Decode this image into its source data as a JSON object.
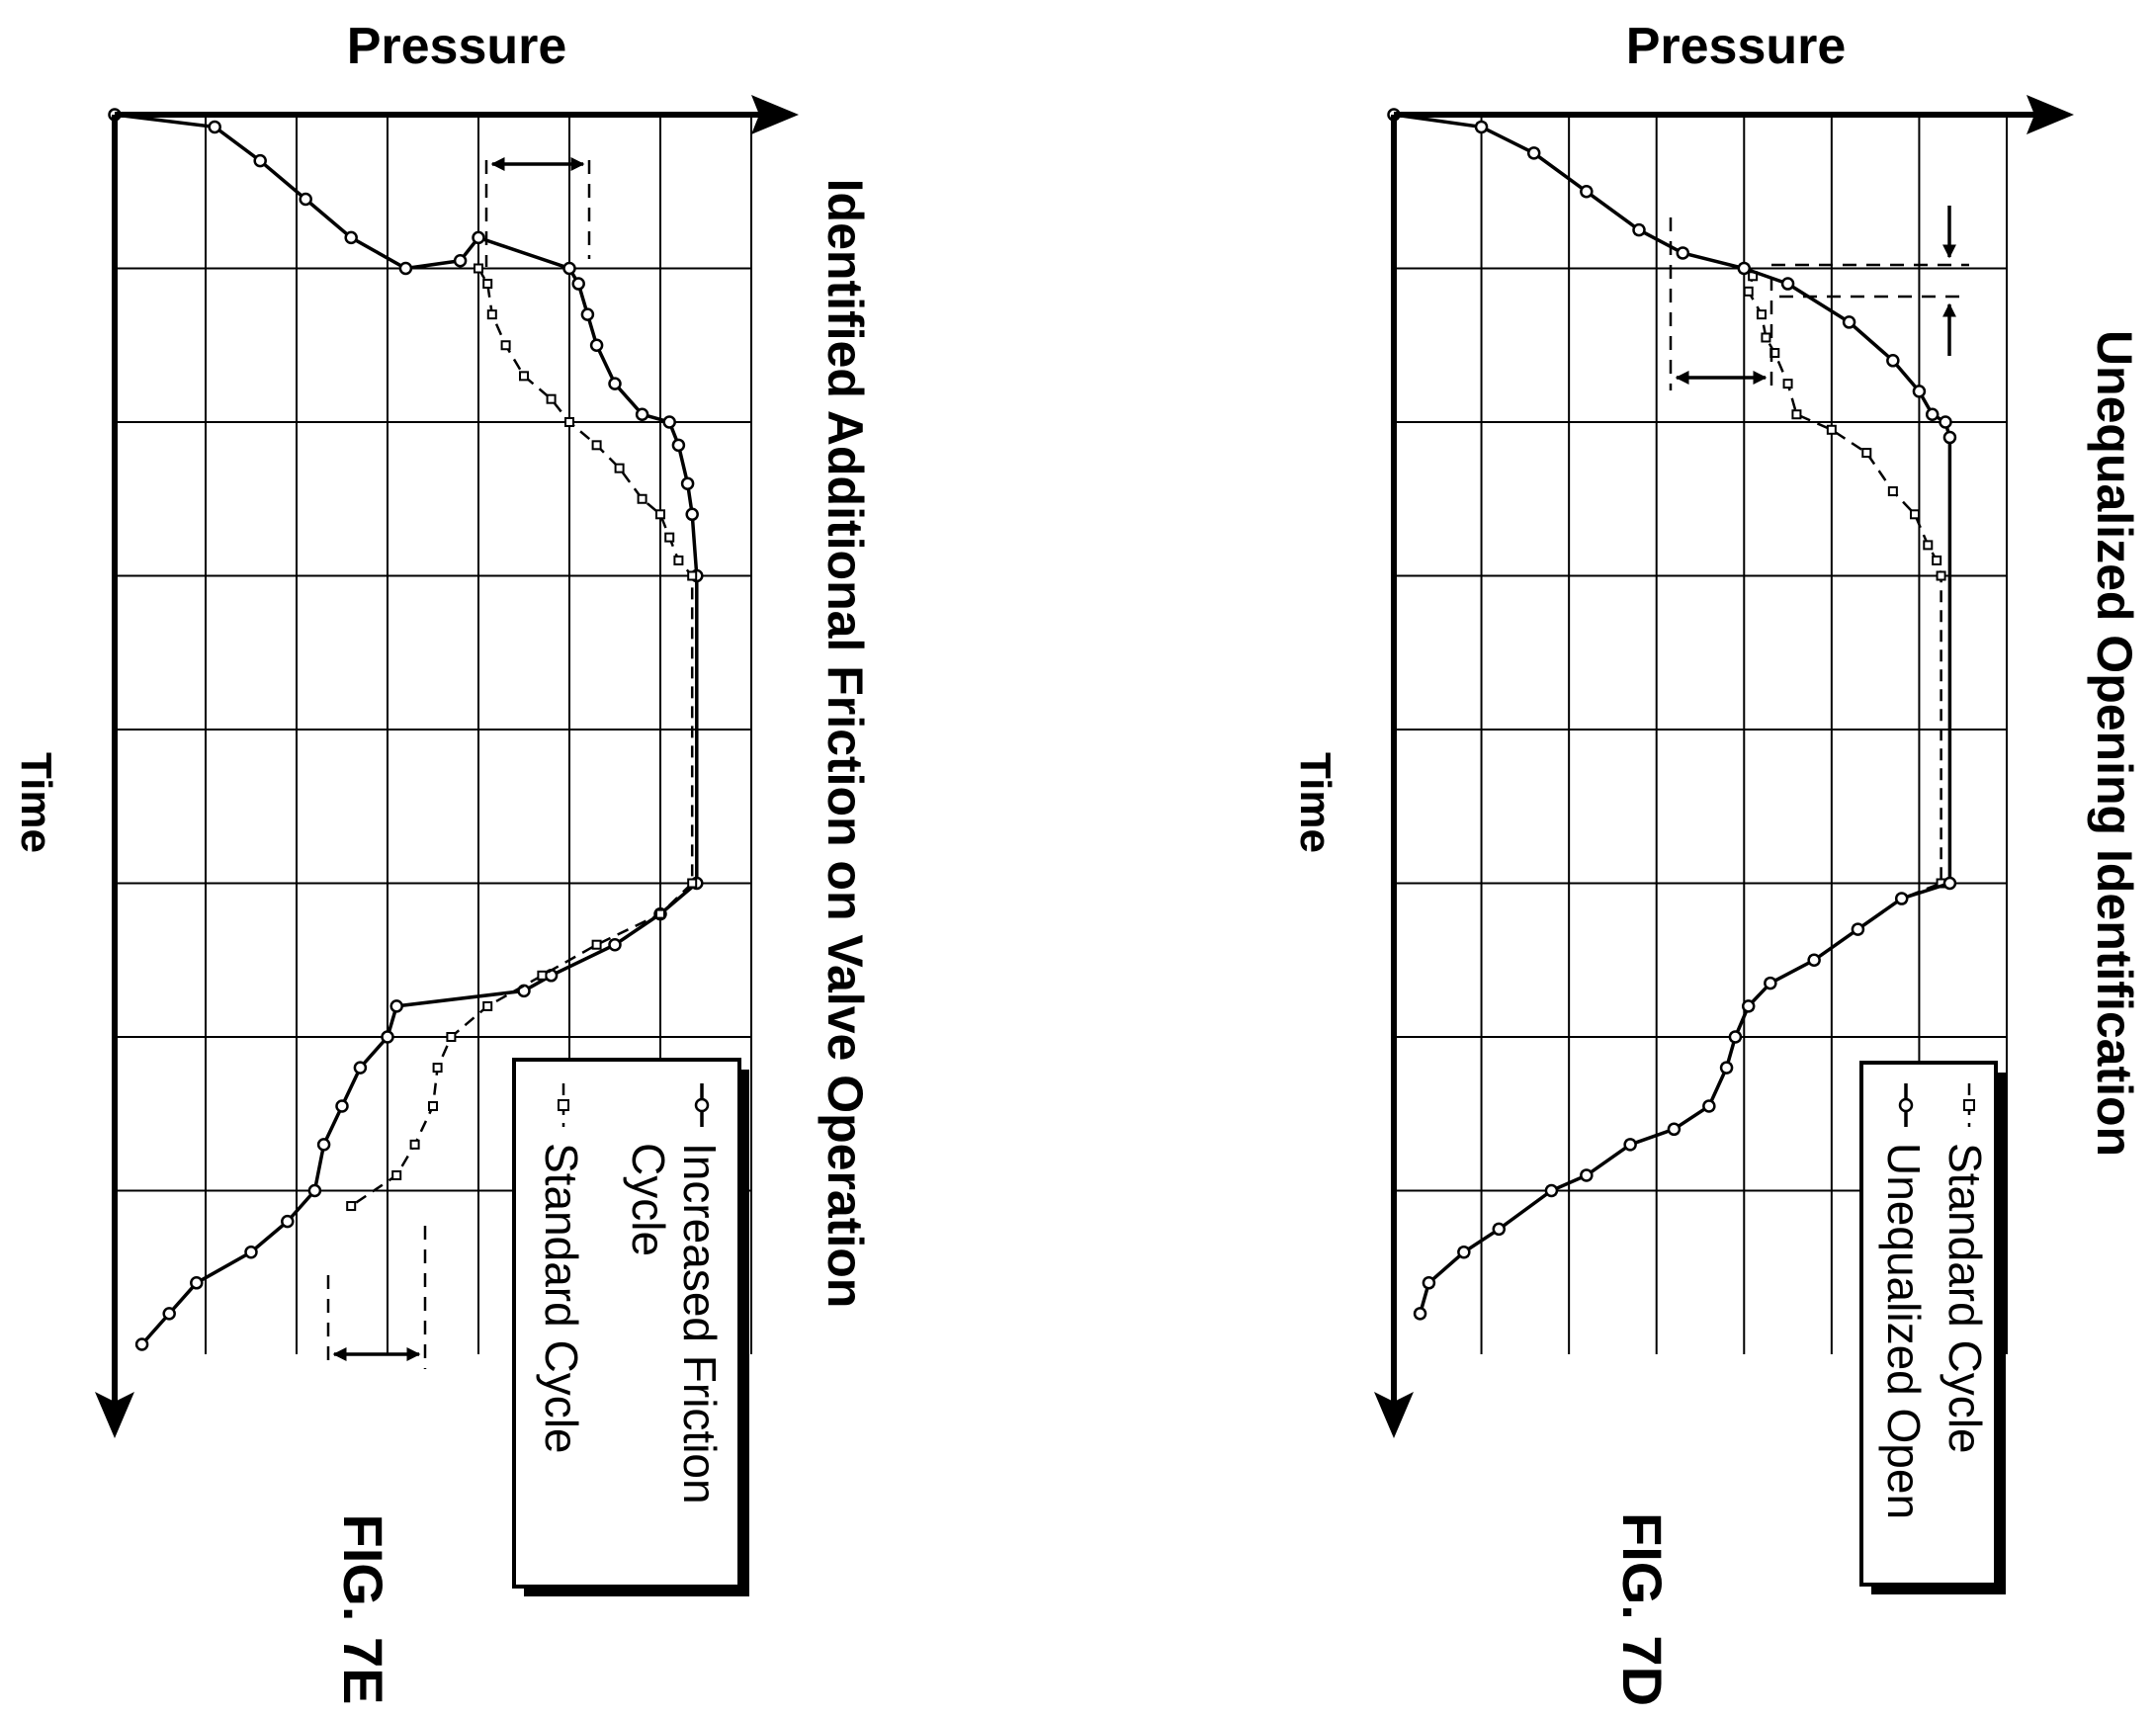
{
  "charts": [
    {
      "id": "fig7d",
      "figure_label": "FIG. 7D",
      "y_axis_label": "Pressure",
      "x_axis_label": "Time",
      "title": "Unequalized Opening Identification",
      "legend": [
        {
          "label_lines": [
            "Standard Cycle"
          ],
          "marker": "square",
          "style": "dashed"
        },
        {
          "label_lines": [
            "Unequalized Open"
          ],
          "marker": "circle",
          "style": "solid"
        }
      ]
    },
    {
      "id": "fig7e",
      "figure_label": "FIG. 7E",
      "y_axis_label": "Pressure",
      "x_axis_label": "Time",
      "title": "Identified Additional Friction on Valve Operation",
      "legend": [
        {
          "label_lines": [
            "Increased Friction",
            "Cycle"
          ],
          "marker": "circle",
          "style": "solid"
        },
        {
          "label_lines": [
            "Standard Cycle"
          ],
          "marker": "square",
          "style": "dashed"
        }
      ]
    }
  ],
  "chart_data": [
    {
      "type": "line",
      "title": "Unequalized Opening Identification",
      "xlabel": "Time",
      "ylabel": "Pressure",
      "xlim": [
        0,
        8
      ],
      "ylim": [
        0,
        7
      ],
      "grid": true,
      "legend_position": "bottom-right",
      "series": [
        {
          "name": "Standard Cycle",
          "marker": "square",
          "style": "dashed",
          "points": [
            [
              0.0,
              0.0
            ],
            [
              0.08,
              1.0
            ],
            [
              0.25,
              1.6
            ],
            [
              0.5,
              2.2
            ],
            [
              0.75,
              2.8
            ],
            [
              0.9,
              3.3
            ],
            [
              1.0,
              4.0
            ],
            [
              1.05,
              4.1
            ],
            [
              1.15,
              4.05
            ],
            [
              1.3,
              4.2
            ],
            [
              1.45,
              4.25
            ],
            [
              1.55,
              4.35
            ],
            [
              1.75,
              4.5
            ],
            [
              1.95,
              4.6
            ],
            [
              2.05,
              5.0
            ],
            [
              2.2,
              5.4
            ],
            [
              2.45,
              5.7
            ],
            [
              2.6,
              5.95
            ],
            [
              2.8,
              6.1
            ],
            [
              2.9,
              6.2
            ],
            [
              3.0,
              6.25
            ],
            [
              5.0,
              6.25
            ],
            [
              5.1,
              5.8
            ],
            [
              5.3,
              5.3
            ],
            [
              5.5,
              4.8
            ],
            [
              5.65,
              4.3
            ],
            [
              5.8,
              4.05
            ],
            [
              6.0,
              3.9
            ],
            [
              6.2,
              3.8
            ],
            [
              6.45,
              3.6
            ],
            [
              6.6,
              3.2
            ],
            [
              6.7,
              2.7
            ],
            [
              6.9,
              2.2
            ],
            [
              7.0,
              1.8
            ],
            [
              7.25,
              1.2
            ],
            [
              7.4,
              0.8
            ],
            [
              7.6,
              0.4
            ],
            [
              7.8,
              0.3
            ]
          ]
        },
        {
          "name": "Unequalized Open",
          "marker": "circle",
          "style": "solid",
          "points": [
            [
              0.0,
              0.0
            ],
            [
              0.08,
              1.0
            ],
            [
              0.25,
              1.6
            ],
            [
              0.5,
              2.2
            ],
            [
              0.75,
              2.8
            ],
            [
              0.9,
              3.3
            ],
            [
              1.0,
              4.0
            ],
            [
              1.1,
              4.5
            ],
            [
              1.35,
              5.2
            ],
            [
              1.6,
              5.7
            ],
            [
              1.8,
              6.0
            ],
            [
              1.95,
              6.15
            ],
            [
              2.0,
              6.3
            ],
            [
              2.1,
              6.35
            ],
            [
              5.0,
              6.35
            ],
            [
              5.1,
              5.8
            ],
            [
              5.3,
              5.3
            ],
            [
              5.5,
              4.8
            ],
            [
              5.65,
              4.3
            ],
            [
              5.8,
              4.05
            ],
            [
              6.0,
              3.9
            ],
            [
              6.2,
              3.8
            ],
            [
              6.45,
              3.6
            ],
            [
              6.6,
              3.2
            ],
            [
              6.7,
              2.7
            ],
            [
              6.9,
              2.2
            ],
            [
              7.0,
              1.8
            ],
            [
              7.25,
              1.2
            ],
            [
              7.4,
              0.8
            ],
            [
              7.6,
              0.4
            ],
            [
              7.8,
              0.3
            ]
          ]
        }
      ]
    },
    {
      "type": "line",
      "title": "Identified Additional Friction on Valve Operation",
      "xlabel": "Time",
      "ylabel": "Pressure",
      "xlim": [
        0,
        8
      ],
      "ylim": [
        0,
        7
      ],
      "grid": true,
      "legend_position": "bottom-right",
      "series": [
        {
          "name": "Increased Friction Cycle",
          "marker": "circle",
          "style": "solid",
          "points": [
            [
              0.0,
              0.0
            ],
            [
              0.08,
              1.1
            ],
            [
              0.3,
              1.6
            ],
            [
              0.55,
              2.1
            ],
            [
              0.8,
              2.6
            ],
            [
              1.0,
              3.2
            ],
            [
              0.95,
              3.8
            ],
            [
              0.8,
              4.0
            ],
            [
              1.0,
              5.0
            ],
            [
              1.1,
              5.1
            ],
            [
              1.3,
              5.2
            ],
            [
              1.5,
              5.3
            ],
            [
              1.75,
              5.5
            ],
            [
              1.95,
              5.8
            ],
            [
              2.0,
              6.1
            ],
            [
              2.15,
              6.2
            ],
            [
              2.4,
              6.3
            ],
            [
              2.6,
              6.35
            ],
            [
              3.0,
              6.4
            ],
            [
              5.0,
              6.4
            ],
            [
              5.2,
              6.0
            ],
            [
              5.4,
              5.5
            ],
            [
              5.6,
              4.8
            ],
            [
              5.7,
              4.5
            ],
            [
              5.8,
              3.1
            ],
            [
              6.0,
              3.0
            ],
            [
              6.2,
              2.7
            ],
            [
              6.45,
              2.5
            ],
            [
              6.7,
              2.3
            ],
            [
              7.0,
              2.2
            ],
            [
              7.2,
              1.9
            ],
            [
              7.4,
              1.5
            ],
            [
              7.6,
              0.9
            ],
            [
              7.8,
              0.6
            ],
            [
              8.0,
              0.3
            ]
          ]
        },
        {
          "name": "Standard Cycle",
          "marker": "square",
          "style": "dashed",
          "points": [
            [
              1.0,
              4.0
            ],
            [
              1.1,
              4.1
            ],
            [
              1.3,
              4.15
            ],
            [
              1.5,
              4.3
            ],
            [
              1.7,
              4.5
            ],
            [
              1.85,
              4.8
            ],
            [
              2.0,
              5.0
            ],
            [
              2.15,
              5.3
            ],
            [
              2.3,
              5.55
            ],
            [
              2.5,
              5.8
            ],
            [
              2.6,
              6.0
            ],
            [
              2.75,
              6.1
            ],
            [
              2.9,
              6.2
            ],
            [
              3.0,
              6.35
            ],
            [
              5.0,
              6.35
            ],
            [
              5.2,
              6.0
            ],
            [
              5.4,
              5.3
            ],
            [
              5.6,
              4.7
            ],
            [
              5.8,
              4.1
            ],
            [
              6.0,
              3.7
            ],
            [
              6.2,
              3.55
            ],
            [
              6.45,
              3.5
            ],
            [
              6.7,
              3.3
            ],
            [
              6.9,
              3.1
            ],
            [
              7.1,
              2.6
            ]
          ]
        }
      ]
    }
  ]
}
